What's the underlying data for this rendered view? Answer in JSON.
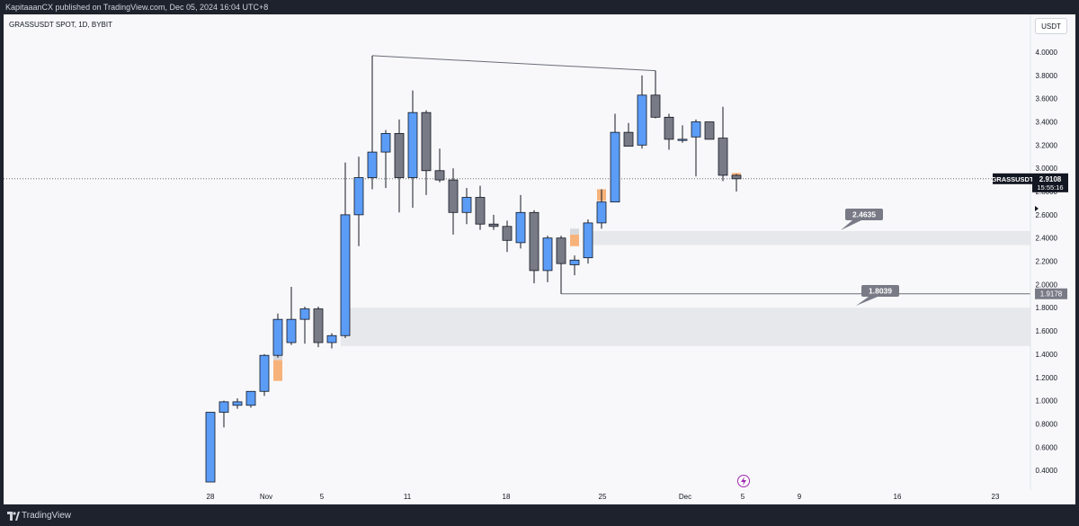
{
  "header": {
    "publisher": "KapitaaanCX published on TradingView.com, Dec 05, 2024 16:04 UTC+8"
  },
  "symbol_info": "GRASSUSDT SPOT, 1D, BYBIT",
  "currency_label": "USDT",
  "footer": {
    "brand": "TradingView"
  },
  "colors": {
    "up": "#5b9cf6",
    "down": "#787b86",
    "zone": "#e2e3e8",
    "fvg": "#f7b27a",
    "fvg_light": "#d6d8de"
  },
  "icons": {
    "lightning": "lightning-icon",
    "logo": "tradingview-logo-icon"
  },
  "chart_data": {
    "type": "candlestick",
    "symbol": "GRASSUSDT",
    "timeframe": "1D",
    "exchange": "BYBIT",
    "ylim": [
      0.3,
      4.2
    ],
    "y_ticks": [
      "4.0000",
      "3.8000",
      "3.6000",
      "3.4000",
      "3.2000",
      "3.0000",
      "2.8000",
      "2.6000",
      "2.4000",
      "2.2000",
      "2.0000",
      "1.8000",
      "1.6000",
      "1.4000",
      "1.2000",
      "1.0000",
      "0.8000",
      "0.6000",
      "0.4000"
    ],
    "x_ticks": [
      "28",
      "Nov",
      "5",
      "11",
      "18",
      "25",
      "Dec",
      "5",
      "9",
      "16",
      "23"
    ],
    "candles": [
      {
        "o": 0.3,
        "h": 0.9,
        "l": 0.3,
        "c": 0.9
      },
      {
        "o": 0.9,
        "h": 1.0,
        "l": 0.77,
        "c": 0.99
      },
      {
        "o": 0.96,
        "h": 1.02,
        "l": 0.93,
        "c": 0.99
      },
      {
        "o": 0.96,
        "h": 1.07,
        "l": 0.94,
        "c": 1.08
      },
      {
        "o": 1.08,
        "h": 1.4,
        "l": 1.04,
        "c": 1.39
      },
      {
        "o": 1.39,
        "h": 1.75,
        "l": 1.37,
        "c": 1.7
      },
      {
        "o": 1.5,
        "h": 1.98,
        "l": 1.48,
        "c": 1.7
      },
      {
        "o": 1.7,
        "h": 1.81,
        "l": 1.49,
        "c": 1.79
      },
      {
        "o": 1.79,
        "h": 1.81,
        "l": 1.46,
        "c": 1.5
      },
      {
        "o": 1.5,
        "h": 1.58,
        "l": 1.45,
        "c": 1.56
      },
      {
        "o": 1.56,
        "h": 3.05,
        "l": 1.54,
        "c": 2.6
      },
      {
        "o": 2.6,
        "h": 3.1,
        "l": 2.33,
        "c": 2.92
      },
      {
        "o": 2.92,
        "h": 3.97,
        "l": 2.82,
        "c": 3.14
      },
      {
        "o": 3.14,
        "h": 3.33,
        "l": 2.83,
        "c": 3.3
      },
      {
        "o": 3.3,
        "h": 3.42,
        "l": 2.62,
        "c": 2.92
      },
      {
        "o": 2.92,
        "h": 3.67,
        "l": 2.66,
        "c": 3.48
      },
      {
        "o": 3.48,
        "h": 3.5,
        "l": 2.77,
        "c": 2.98
      },
      {
        "o": 2.98,
        "h": 3.17,
        "l": 2.88,
        "c": 2.9
      },
      {
        "o": 2.9,
        "h": 3.0,
        "l": 2.43,
        "c": 2.62
      },
      {
        "o": 2.62,
        "h": 2.83,
        "l": 2.52,
        "c": 2.75
      },
      {
        "o": 2.75,
        "h": 2.85,
        "l": 2.47,
        "c": 2.52
      },
      {
        "o": 2.52,
        "h": 2.6,
        "l": 2.47,
        "c": 2.5
      },
      {
        "o": 2.5,
        "h": 2.55,
        "l": 2.28,
        "c": 2.38
      },
      {
        "o": 2.36,
        "h": 2.77,
        "l": 2.31,
        "c": 2.62
      },
      {
        "o": 2.62,
        "h": 2.64,
        "l": 2.01,
        "c": 2.12
      },
      {
        "o": 2.12,
        "h": 2.42,
        "l": 2.02,
        "c": 2.4
      },
      {
        "o": 2.4,
        "h": 2.42,
        "l": 1.92,
        "c": 2.18
      },
      {
        "o": 2.17,
        "h": 2.25,
        "l": 2.08,
        "c": 2.21
      },
      {
        "o": 2.23,
        "h": 2.56,
        "l": 2.18,
        "c": 2.53
      },
      {
        "o": 2.53,
        "h": 2.82,
        "l": 2.48,
        "c": 2.71
      },
      {
        "o": 2.71,
        "h": 3.47,
        "l": 2.71,
        "c": 3.31
      },
      {
        "o": 3.31,
        "h": 3.39,
        "l": 3.19,
        "c": 3.19
      },
      {
        "o": 3.2,
        "h": 3.8,
        "l": 3.17,
        "c": 3.63
      },
      {
        "o": 3.63,
        "h": 3.84,
        "l": 3.43,
        "c": 3.44
      },
      {
        "o": 3.44,
        "h": 3.47,
        "l": 3.16,
        "c": 3.25
      },
      {
        "o": 3.24,
        "h": 3.37,
        "l": 3.22,
        "c": 3.25
      },
      {
        "o": 3.27,
        "h": 3.42,
        "l": 2.93,
        "c": 3.4
      },
      {
        "o": 3.4,
        "h": 3.4,
        "l": 3.25,
        "c": 3.25
      },
      {
        "o": 3.26,
        "h": 3.53,
        "l": 2.89,
        "c": 2.94
      },
      {
        "o": 2.94,
        "h": 2.95,
        "l": 2.8,
        "c": 2.91
      }
    ],
    "zones": [
      {
        "from_candle": 28,
        "y_top": 2.46,
        "y_bottom": 2.34,
        "label": "2.4635"
      },
      {
        "from_candle": 10,
        "y_top": 1.8,
        "y_bottom": 1.47,
        "label": "1.8039"
      }
    ],
    "imbalances": [
      {
        "candle": 5,
        "y_top": 1.35,
        "y_bottom": 1.17,
        "color": "fvg"
      },
      {
        "candle": 5,
        "y_top": 1.4,
        "y_bottom": 1.35,
        "color": "fvg_light"
      },
      {
        "candle": 10,
        "y_top": 1.87,
        "y_bottom": 1.72,
        "color": "fvg"
      },
      {
        "candle": 10,
        "y_top": 2.3,
        "y_bottom": 1.87,
        "color": "fvg_light"
      },
      {
        "candle": 27,
        "y_top": 2.43,
        "y_bottom": 2.33,
        "color": "fvg"
      },
      {
        "candle": 27,
        "y_top": 2.48,
        "y_bottom": 2.43,
        "color": "fvg_light"
      },
      {
        "candle": 29,
        "y_top": 2.82,
        "y_bottom": 2.72,
        "color": "fvg"
      },
      {
        "candle": 30,
        "y_top": 3.08,
        "y_bottom": 3.02,
        "color": "fvg_light"
      },
      {
        "candle": 39,
        "y_top": 2.96,
        "y_bottom": 2.92,
        "color": "fvg"
      }
    ],
    "trendlines": [
      {
        "from_candle": 12,
        "from_y": 3.97,
        "to_candle": 33,
        "to_y": 3.84
      },
      {
        "from_candle": 26,
        "from_y": 1.92,
        "to_candle": "axis",
        "to_y": 1.92
      }
    ],
    "current_price": "2.9108",
    "countdown": "15:55:16",
    "last_price_line": 2.91,
    "level_label": "1.9178"
  }
}
